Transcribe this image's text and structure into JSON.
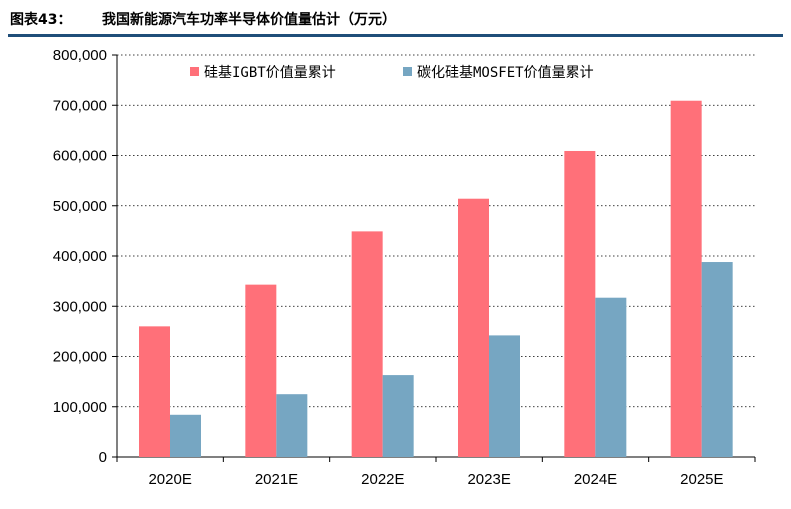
{
  "figure": {
    "label": "图表43：",
    "title": "我国新能源汽车功率半导体价值量估计（万元）"
  },
  "colors": {
    "rule": "#1f4e79",
    "grid": "#000000"
  },
  "chart_data": {
    "type": "bar",
    "categories": [
      "2020E",
      "2021E",
      "2022E",
      "2023E",
      "2024E",
      "2025E"
    ],
    "series": [
      {
        "name": "硅基IGBT价值量累计",
        "color": "#ff7079",
        "values": [
          260000,
          343000,
          449000,
          514000,
          609000,
          709000
        ]
      },
      {
        "name": "碳化硅基MOSFET价值量累计",
        "color": "#76a6c2",
        "values": [
          84000,
          125000,
          163000,
          242000,
          317000,
          388000
        ]
      }
    ],
    "ylim": [
      0,
      800000
    ],
    "yticks": [
      0,
      100000,
      200000,
      300000,
      400000,
      500000,
      600000,
      700000,
      800000
    ],
    "ytick_labels": [
      "0",
      "100,000",
      "200,000",
      "300,000",
      "400,000",
      "500,000",
      "600,000",
      "700,000",
      "800,000"
    ],
    "grid": "horizontal dotted",
    "legend": "top-left inside plot"
  }
}
